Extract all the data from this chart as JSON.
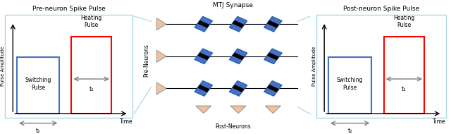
{
  "pre_title": "Pre-neuron Spike Pulse",
  "post_title": "Post-neuron Spike Pulse",
  "middle_title": "MTJ Synapse",
  "pre_neurons_label": "Pre-Neurons",
  "post_neurons_label": "Post-Neurons",
  "ylabel": "Pulse Amplitude",
  "xlabel": "Time",
  "switching_label": "Switching\nPulse",
  "heating_label": "Heating\nPulse",
  "t1_label": "t₁",
  "t2_label": "t₂",
  "blue_color": "#4472C4",
  "red_color": "#FF0000",
  "peach_color": "#F4C09A",
  "background": "#FFFFFF",
  "border_color": "#ADD8E6",
  "gray_color": "#808080"
}
